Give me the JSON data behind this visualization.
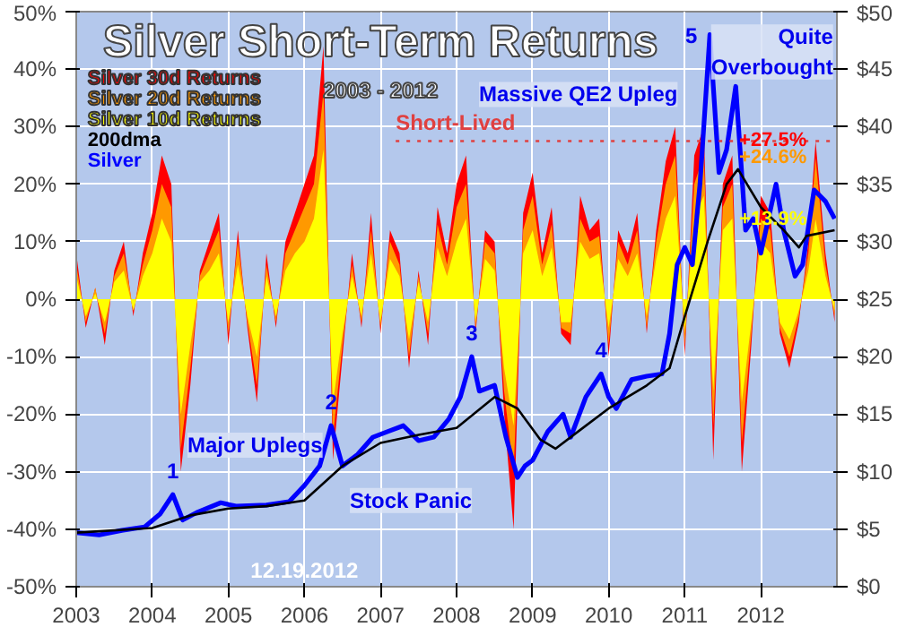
{
  "chart_data": {
    "type": "area",
    "title": "Silver Short-Term Returns",
    "subtitle": "2003 - 2012",
    "x": [
      2003,
      2003.125,
      2003.25,
      2003.375,
      2003.5,
      2003.625,
      2003.75,
      2003.875,
      2004,
      2004.125,
      2004.25,
      2004.375,
      2004.5,
      2004.625,
      2004.75,
      2004.875,
      2005,
      2005.125,
      2005.25,
      2005.375,
      2005.5,
      2005.625,
      2005.75,
      2005.875,
      2006,
      2006.125,
      2006.25,
      2006.375,
      2006.5,
      2006.625,
      2006.75,
      2006.875,
      2007,
      2007.125,
      2007.25,
      2007.375,
      2007.5,
      2007.625,
      2007.75,
      2007.875,
      2008,
      2008.125,
      2008.25,
      2008.375,
      2008.5,
      2008.625,
      2008.75,
      2008.875,
      2009,
      2009.125,
      2009.25,
      2009.375,
      2009.5,
      2009.625,
      2009.75,
      2009.875,
      2010,
      2010.125,
      2010.25,
      2010.375,
      2010.5,
      2010.625,
      2010.75,
      2010.875,
      2011,
      2011.125,
      2011.25,
      2011.375,
      2011.5,
      2011.625,
      2011.75,
      2011.875,
      2012,
      2012.125,
      2012.25,
      2012.375,
      2012.5,
      2012.625,
      2012.72,
      2012.85,
      2012.97
    ],
    "series": [
      {
        "name": "Silver 30d Returns",
        "color": "#ff0000",
        "values": [
          8,
          -5,
          2,
          -8,
          5,
          10,
          -3,
          8,
          15,
          25,
          20,
          -30,
          -15,
          5,
          10,
          15,
          -8,
          12,
          -5,
          -18,
          8,
          -5,
          10,
          15,
          20,
          25,
          44,
          -28,
          -10,
          8,
          -5,
          15,
          -6,
          12,
          8,
          -12,
          5,
          -8,
          16,
          8,
          20,
          25,
          -6,
          12,
          10,
          -20,
          -40,
          15,
          22,
          8,
          16,
          -6,
          -8,
          18,
          12,
          14,
          -10,
          12,
          8,
          15,
          -6,
          12,
          24,
          30,
          -10,
          25,
          30,
          -28,
          20,
          25,
          -30,
          -8,
          18,
          15,
          -6,
          -12,
          -4,
          10,
          27.5,
          8,
          -4
        ],
        "value_labels": [
          null,
          null,
          null,
          null,
          null,
          null,
          null,
          null,
          null,
          null,
          null,
          null,
          null,
          null,
          null,
          null,
          null,
          null,
          null,
          null,
          null,
          null,
          null,
          null,
          null,
          null,
          null,
          null,
          null,
          null,
          null,
          null,
          null,
          null,
          null,
          null,
          null,
          null,
          null,
          null,
          null,
          null,
          null,
          null,
          null,
          null,
          null,
          null,
          null,
          null,
          null,
          null,
          null,
          null,
          null,
          null,
          null,
          null,
          null,
          null,
          null,
          null,
          null,
          null,
          null,
          null,
          null,
          null,
          null,
          null,
          null,
          null,
          null,
          null,
          null,
          null,
          null,
          null,
          "+27.5%",
          null,
          null
        ]
      },
      {
        "name": "Silver 20d Returns",
        "color": "#ff9900",
        "values": [
          6,
          -4,
          2,
          -6,
          4,
          8,
          -2,
          6,
          12,
          20,
          16,
          -26,
          -12,
          4,
          8,
          12,
          -6,
          10,
          -4,
          -15,
          6,
          -4,
          8,
          12,
          16,
          20,
          36,
          -24,
          -8,
          6,
          -4,
          12,
          -5,
          10,
          6,
          -10,
          4,
          -6,
          13,
          6,
          16,
          20,
          -5,
          10,
          8,
          -16,
          -30,
          12,
          18,
          6,
          13,
          -5,
          -6,
          14,
          10,
          11,
          -8,
          10,
          6,
          12,
          -5,
          10,
          20,
          25,
          -8,
          20,
          25,
          -22,
          16,
          20,
          -25,
          -6,
          14,
          12,
          -5,
          -10,
          -3,
          8,
          24.6,
          6,
          -3
        ],
        "value_labels": [
          null,
          null,
          null,
          null,
          null,
          null,
          null,
          null,
          null,
          null,
          null,
          null,
          null,
          null,
          null,
          null,
          null,
          null,
          null,
          null,
          null,
          null,
          null,
          null,
          null,
          null,
          null,
          null,
          null,
          null,
          null,
          null,
          null,
          null,
          null,
          null,
          null,
          null,
          null,
          null,
          null,
          null,
          null,
          null,
          null,
          null,
          null,
          null,
          null,
          null,
          null,
          null,
          null,
          null,
          null,
          null,
          null,
          null,
          null,
          null,
          null,
          null,
          null,
          null,
          null,
          null,
          null,
          null,
          null,
          null,
          null,
          null,
          null,
          null,
          null,
          null,
          null,
          null,
          "+24.6%",
          null,
          null
        ]
      },
      {
        "name": "Silver 10d Returns",
        "color": "#ffff00",
        "values": [
          4,
          -3,
          1,
          -4,
          3,
          5,
          -2,
          4,
          8,
          14,
          10,
          -20,
          -8,
          3,
          5,
          8,
          -4,
          6,
          -3,
          -10,
          4,
          -3,
          5,
          8,
          10,
          14,
          26,
          -18,
          -6,
          4,
          -3,
          8,
          -4,
          7,
          4,
          -7,
          3,
          -4,
          9,
          4,
          10,
          14,
          -4,
          7,
          5,
          -12,
          -22,
          8,
          12,
          4,
          9,
          -4,
          -4,
          10,
          7,
          8,
          -5,
          7,
          4,
          8,
          -3,
          7,
          14,
          18,
          -6,
          14,
          18,
          -16,
          12,
          14,
          -18,
          -4,
          10,
          8,
          -4,
          -7,
          -2,
          5,
          13.9,
          4,
          -2
        ],
        "value_labels": [
          null,
          null,
          null,
          null,
          null,
          null,
          null,
          null,
          null,
          null,
          null,
          null,
          null,
          null,
          null,
          null,
          null,
          null,
          null,
          null,
          null,
          null,
          null,
          null,
          null,
          null,
          null,
          null,
          null,
          null,
          null,
          null,
          null,
          null,
          null,
          null,
          null,
          null,
          null,
          null,
          null,
          null,
          null,
          null,
          null,
          null,
          null,
          null,
          null,
          null,
          null,
          null,
          null,
          null,
          null,
          null,
          null,
          null,
          null,
          null,
          null,
          null,
          null,
          null,
          null,
          null,
          null,
          null,
          null,
          null,
          null,
          null,
          null,
          null,
          null,
          null,
          null,
          null,
          "+13.9%",
          null,
          null
        ]
      },
      {
        "name": "200dma",
        "type": "line",
        "axis": "y2",
        "color": "#000000",
        "x": [
          2003,
          2004,
          2004.5,
          2005,
          2005.5,
          2006,
          2006.5,
          2007,
          2007.5,
          2008,
          2008.5,
          2008.8,
          2009.1,
          2009.3,
          2009.6,
          2010,
          2010.5,
          2010.8,
          2011,
          2011.3,
          2011.55,
          2011.7,
          2012,
          2012.3,
          2012.5,
          2012.6,
          2012.97
        ],
        "values": [
          4.7,
          5.1,
          6.2,
          6.8,
          7,
          7.5,
          10.5,
          12.5,
          13.2,
          13.8,
          16.5,
          15.5,
          12.8,
          12,
          13.5,
          15.5,
          17.5,
          19,
          23.5,
          30,
          35,
          36.3,
          33,
          31,
          29.5,
          30.5,
          31
        ]
      },
      {
        "name": "Silver",
        "type": "line",
        "axis": "y2",
        "color": "#0000ff",
        "x": [
          2003,
          2003.3,
          2003.6,
          2003.9,
          2004.1,
          2004.27,
          2004.4,
          2004.6,
          2004.9,
          2005.1,
          2005.5,
          2005.8,
          2006,
          2006.2,
          2006.35,
          2006.5,
          2006.7,
          2006.9,
          2007.1,
          2007.3,
          2007.5,
          2007.7,
          2007.9,
          2008.05,
          2008.2,
          2008.3,
          2008.5,
          2008.65,
          2008.8,
          2008.9,
          2009,
          2009.2,
          2009.4,
          2009.5,
          2009.7,
          2009.9,
          2010,
          2010.1,
          2010.3,
          2010.5,
          2010.7,
          2010.8,
          2010.9,
          2011,
          2011.1,
          2011.2,
          2011.33,
          2011.45,
          2011.55,
          2011.67,
          2011.8,
          2011.9,
          2012,
          2012.2,
          2012.3,
          2012.45,
          2012.55,
          2012.7,
          2012.85,
          2012.97
        ],
        "values": [
          4.7,
          4.5,
          4.9,
          5.2,
          6.3,
          8,
          5.8,
          6.5,
          7.3,
          7,
          7.1,
          7.4,
          8.8,
          10.5,
          14,
          10.5,
          11.5,
          13,
          13.5,
          14,
          12.7,
          13,
          14.6,
          16.5,
          20,
          17,
          17.5,
          13,
          9.5,
          10.5,
          11,
          13.5,
          15,
          13,
          16.5,
          18.5,
          16.5,
          15.5,
          18,
          18.3,
          18.5,
          22,
          28,
          29.5,
          28,
          35,
          48,
          36,
          38,
          43.5,
          31,
          32,
          29,
          35,
          31,
          27,
          28,
          34.5,
          33.5,
          32
        ]
      }
    ],
    "xlim": [
      2003,
      2013
    ],
    "xticks": [
      2003,
      2004,
      2005,
      2006,
      2007,
      2008,
      2009,
      2010,
      2011,
      2012
    ],
    "ylim": [
      -50,
      50
    ],
    "yticks": [
      {
        "value": -50,
        "label": "-50%"
      },
      {
        "value": -40,
        "label": "-40%"
      },
      {
        "value": -30,
        "label": "-30%"
      },
      {
        "value": -20,
        "label": "-20%"
      },
      {
        "value": -10,
        "label": "-10%"
      },
      {
        "value": 0,
        "label": "0%"
      },
      {
        "value": 10,
        "label": "10%"
      },
      {
        "value": 20,
        "label": "20%"
      },
      {
        "value": 30,
        "label": "30%"
      },
      {
        "value": 40,
        "label": "40%"
      },
      {
        "value": 50,
        "label": "50%"
      }
    ],
    "y2lim": [
      0,
      50
    ],
    "y2ticks": [
      {
        "value": 0,
        "label": "$0"
      },
      {
        "value": 5,
        "label": "$5"
      },
      {
        "value": 10,
        "label": "$10"
      },
      {
        "value": 15,
        "label": "$15"
      },
      {
        "value": 20,
        "label": "$20"
      },
      {
        "value": 25,
        "label": "$25"
      },
      {
        "value": 30,
        "label": "$30"
      },
      {
        "value": 35,
        "label": "$35"
      },
      {
        "value": 40,
        "label": "$40"
      },
      {
        "value": 45,
        "label": "$45"
      },
      {
        "value": 50,
        "label": "$50"
      }
    ],
    "ref_lines": [
      {
        "axis": "y",
        "value": 27.5,
        "label": "Short-Lived",
        "color": "#e04040",
        "line_style": "dotted"
      }
    ],
    "annotations": [
      {
        "text": "1",
        "x": 2004.27,
        "y": -34
      },
      {
        "text": "2",
        "x": 2006.35,
        "y": -22
      },
      {
        "text": "3",
        "x": 2008.2,
        "y": -10
      },
      {
        "text": "4",
        "x": 2009.9,
        "y": -13
      },
      {
        "text": "5",
        "x": 2011.33,
        "y": 46
      },
      "Massive QE2 Upleg",
      "Major Uplegs",
      "Stock Panic",
      "Quite Overbought",
      "12.19.2012"
    ],
    "grid": true,
    "legend": "top left"
  }
}
